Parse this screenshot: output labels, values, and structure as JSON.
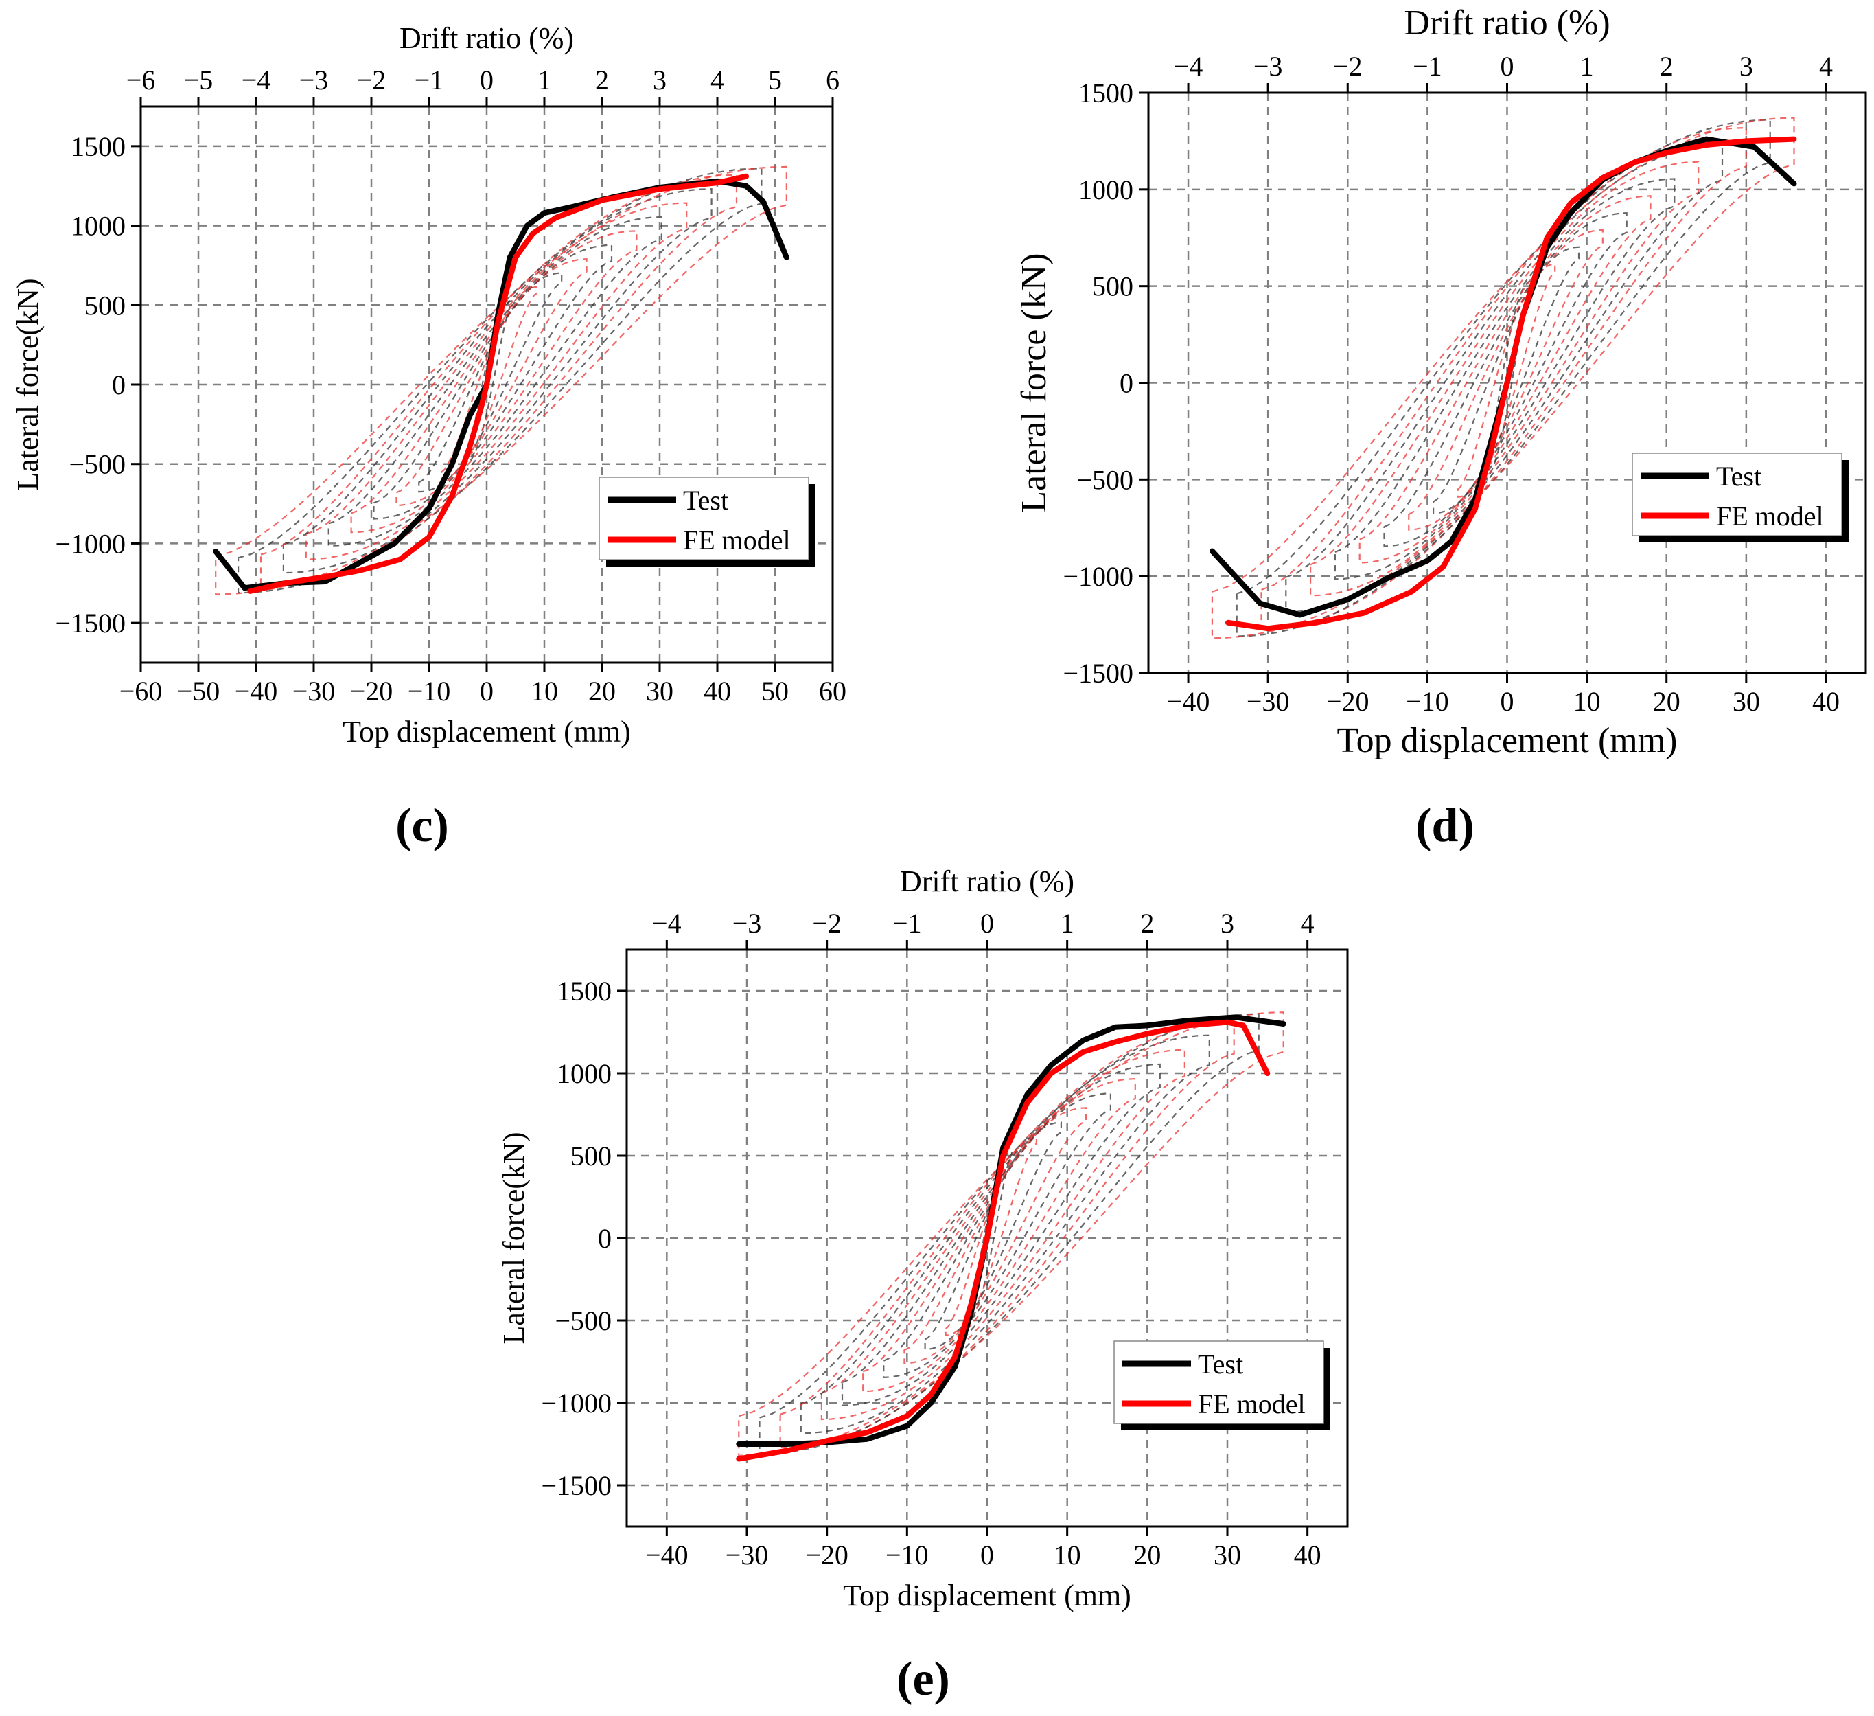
{
  "figure": {
    "panel_c": "(c)",
    "panel_d": "(d)",
    "panel_e": "(e)"
  },
  "colors": {
    "test": "#000000",
    "fe_model": "#ff0000",
    "grid": "#808080"
  },
  "chart_data": [
    {
      "id": "c",
      "type": "line",
      "panel_label": "(c)",
      "xlabel": "Top displacement (mm)",
      "x2label": "Drift ratio (%)",
      "ylabel": "Lateral force(kN)",
      "xlim": [
        -60,
        60
      ],
      "ylim": [
        -1750,
        1750
      ],
      "x_ticks": [
        -60,
        -50,
        -40,
        -30,
        -20,
        -10,
        0,
        10,
        20,
        30,
        40,
        50,
        60
      ],
      "x_tick_labels": [
        "−60",
        "−50",
        "−40",
        "−30",
        "−20",
        "−10",
        "0",
        "10",
        "20",
        "30",
        "40",
        "50",
        "60"
      ],
      "drift_ticks": [
        -6,
        -5,
        -4,
        -3,
        -2,
        -1,
        0,
        1,
        2,
        3,
        4,
        5,
        6
      ],
      "drift_tick_labels": [
        "−6",
        "−5",
        "−4",
        "−3",
        "−2",
        "−1",
        "0",
        "1",
        "2",
        "3",
        "4",
        "5",
        "6"
      ],
      "drift_per_mm": 0.1,
      "y_ticks": [
        -1500,
        -1000,
        -500,
        0,
        500,
        1000,
        1500
      ],
      "y_tick_labels": [
        "−1500",
        "−1000",
        "−500",
        "0",
        "500",
        "1000",
        "1500"
      ],
      "grid": true,
      "legend": {
        "position": "bottom-right",
        "entries": [
          "Test",
          "FE model"
        ]
      },
      "series": [
        {
          "name": "Test",
          "style": "solid",
          "x": [
            -47,
            -42,
            -35,
            -28,
            -22,
            -16,
            -10,
            -6,
            -3,
            0,
            2,
            4,
            7,
            10,
            15,
            22,
            30,
            40,
            45,
            48,
            52
          ],
          "y": [
            -1050,
            -1280,
            -1250,
            -1240,
            -1120,
            -1000,
            -780,
            -500,
            -200,
            0,
            450,
            800,
            1000,
            1080,
            1120,
            1180,
            1240,
            1280,
            1250,
            1150,
            800
          ]
        },
        {
          "name": "FE model",
          "style": "solid",
          "x": [
            -41,
            -35,
            -28,
            -22,
            -15,
            -10,
            -6,
            -3,
            -1,
            0,
            2,
            5,
            8,
            12,
            20,
            30,
            40,
            45
          ],
          "y": [
            -1300,
            -1250,
            -1210,
            -1170,
            -1100,
            -960,
            -700,
            -400,
            -150,
            0,
            400,
            800,
            950,
            1050,
            1160,
            1230,
            1270,
            1310
          ]
        }
      ]
    },
    {
      "id": "d",
      "type": "line",
      "panel_label": "(d)",
      "xlabel": "Top displacement (mm)",
      "x2label": "Drift ratio (%)",
      "ylabel": "Lateral force (kN)",
      "xlim": [
        -45,
        45
      ],
      "ylim": [
        -1500,
        1500
      ],
      "x_ticks": [
        -40,
        -30,
        -20,
        -10,
        0,
        10,
        20,
        30,
        40
      ],
      "x_tick_labels": [
        "−40",
        "−30",
        "−20",
        "−10",
        "0",
        "10",
        "20",
        "30",
        "40"
      ],
      "drift_ticks": [
        -4,
        -3,
        -2,
        -1,
        0,
        1,
        2,
        3,
        4
      ],
      "drift_tick_labels": [
        "−4",
        "−3",
        "−2",
        "−1",
        "0",
        "1",
        "2",
        "3",
        "4"
      ],
      "drift_per_mm": 0.1,
      "y_ticks": [
        -1500,
        -1000,
        -500,
        0,
        500,
        1000,
        1500
      ],
      "y_tick_labels": [
        "−1500",
        "−1000",
        "−500",
        "0",
        "500",
        "1000",
        "1500"
      ],
      "grid": true,
      "legend": {
        "position": "bottom-right",
        "entries": [
          "Test",
          "FE model"
        ]
      },
      "series": [
        {
          "name": "Test",
          "style": "solid",
          "x": [
            -37,
            -31,
            -26,
            -20,
            -15,
            -10,
            -7,
            -4,
            -2,
            0,
            2,
            5,
            8,
            12,
            16,
            20,
            25,
            31,
            36
          ],
          "y": [
            -870,
            -1140,
            -1200,
            -1120,
            -1010,
            -920,
            -820,
            -600,
            -300,
            0,
            350,
            700,
            880,
            1050,
            1140,
            1200,
            1260,
            1220,
            1030
          ]
        },
        {
          "name": "FE model",
          "style": "solid",
          "x": [
            -35,
            -30,
            -24,
            -18,
            -12,
            -8,
            -4,
            -2,
            0,
            2,
            5,
            8,
            12,
            16,
            20,
            25,
            30,
            36
          ],
          "y": [
            -1240,
            -1270,
            -1240,
            -1190,
            -1080,
            -950,
            -650,
            -350,
            0,
            350,
            750,
            930,
            1060,
            1140,
            1190,
            1230,
            1250,
            1260
          ]
        }
      ]
    },
    {
      "id": "e",
      "type": "line",
      "panel_label": "(e)",
      "xlabel": "Top displacement (mm)",
      "x2label": "Drift ratio (%)",
      "ylabel": "Lateral force(kN)",
      "xlim": [
        -45,
        45
      ],
      "ylim": [
        -1750,
        1750
      ],
      "x_ticks": [
        -40,
        -30,
        -20,
        -10,
        0,
        10,
        20,
        30,
        40
      ],
      "x_tick_labels": [
        "−40",
        "−30",
        "−20",
        "−10",
        "0",
        "10",
        "20",
        "30",
        "40"
      ],
      "drift_ticks": [
        -4,
        -3,
        -2,
        -1,
        0,
        1,
        2,
        3,
        4
      ],
      "drift_tick_labels": [
        "−4",
        "−3",
        "−2",
        "−1",
        "0",
        "1",
        "2",
        "3",
        "4"
      ],
      "drift_per_mm": 0.1,
      "y_ticks": [
        -1500,
        -1000,
        -500,
        0,
        500,
        1000,
        1500
      ],
      "y_tick_labels": [
        "−1500",
        "−1000",
        "−500",
        "0",
        "500",
        "1000",
        "1500"
      ],
      "grid": true,
      "legend": {
        "position": "bottom-right",
        "entries": [
          "Test",
          "FE model"
        ]
      },
      "series": [
        {
          "name": "Test",
          "style": "solid",
          "x": [
            -31,
            -25,
            -20,
            -15,
            -10,
            -7,
            -4,
            -2,
            0,
            2,
            5,
            8,
            12,
            16,
            20,
            25,
            31,
            37
          ],
          "y": [
            -1250,
            -1250,
            -1240,
            -1220,
            -1140,
            -1000,
            -780,
            -450,
            0,
            550,
            870,
            1050,
            1200,
            1280,
            1290,
            1320,
            1340,
            1300
          ]
        },
        {
          "name": "FE model",
          "style": "solid",
          "x": [
            -31,
            -25,
            -20,
            -15,
            -10,
            -7,
            -4,
            -2,
            0,
            2,
            5,
            8,
            12,
            16,
            20,
            25,
            30,
            32,
            35
          ],
          "y": [
            -1340,
            -1290,
            -1230,
            -1180,
            -1080,
            -950,
            -720,
            -400,
            0,
            500,
            820,
            1000,
            1130,
            1190,
            1240,
            1290,
            1310,
            1290,
            1000
          ]
        }
      ]
    }
  ]
}
